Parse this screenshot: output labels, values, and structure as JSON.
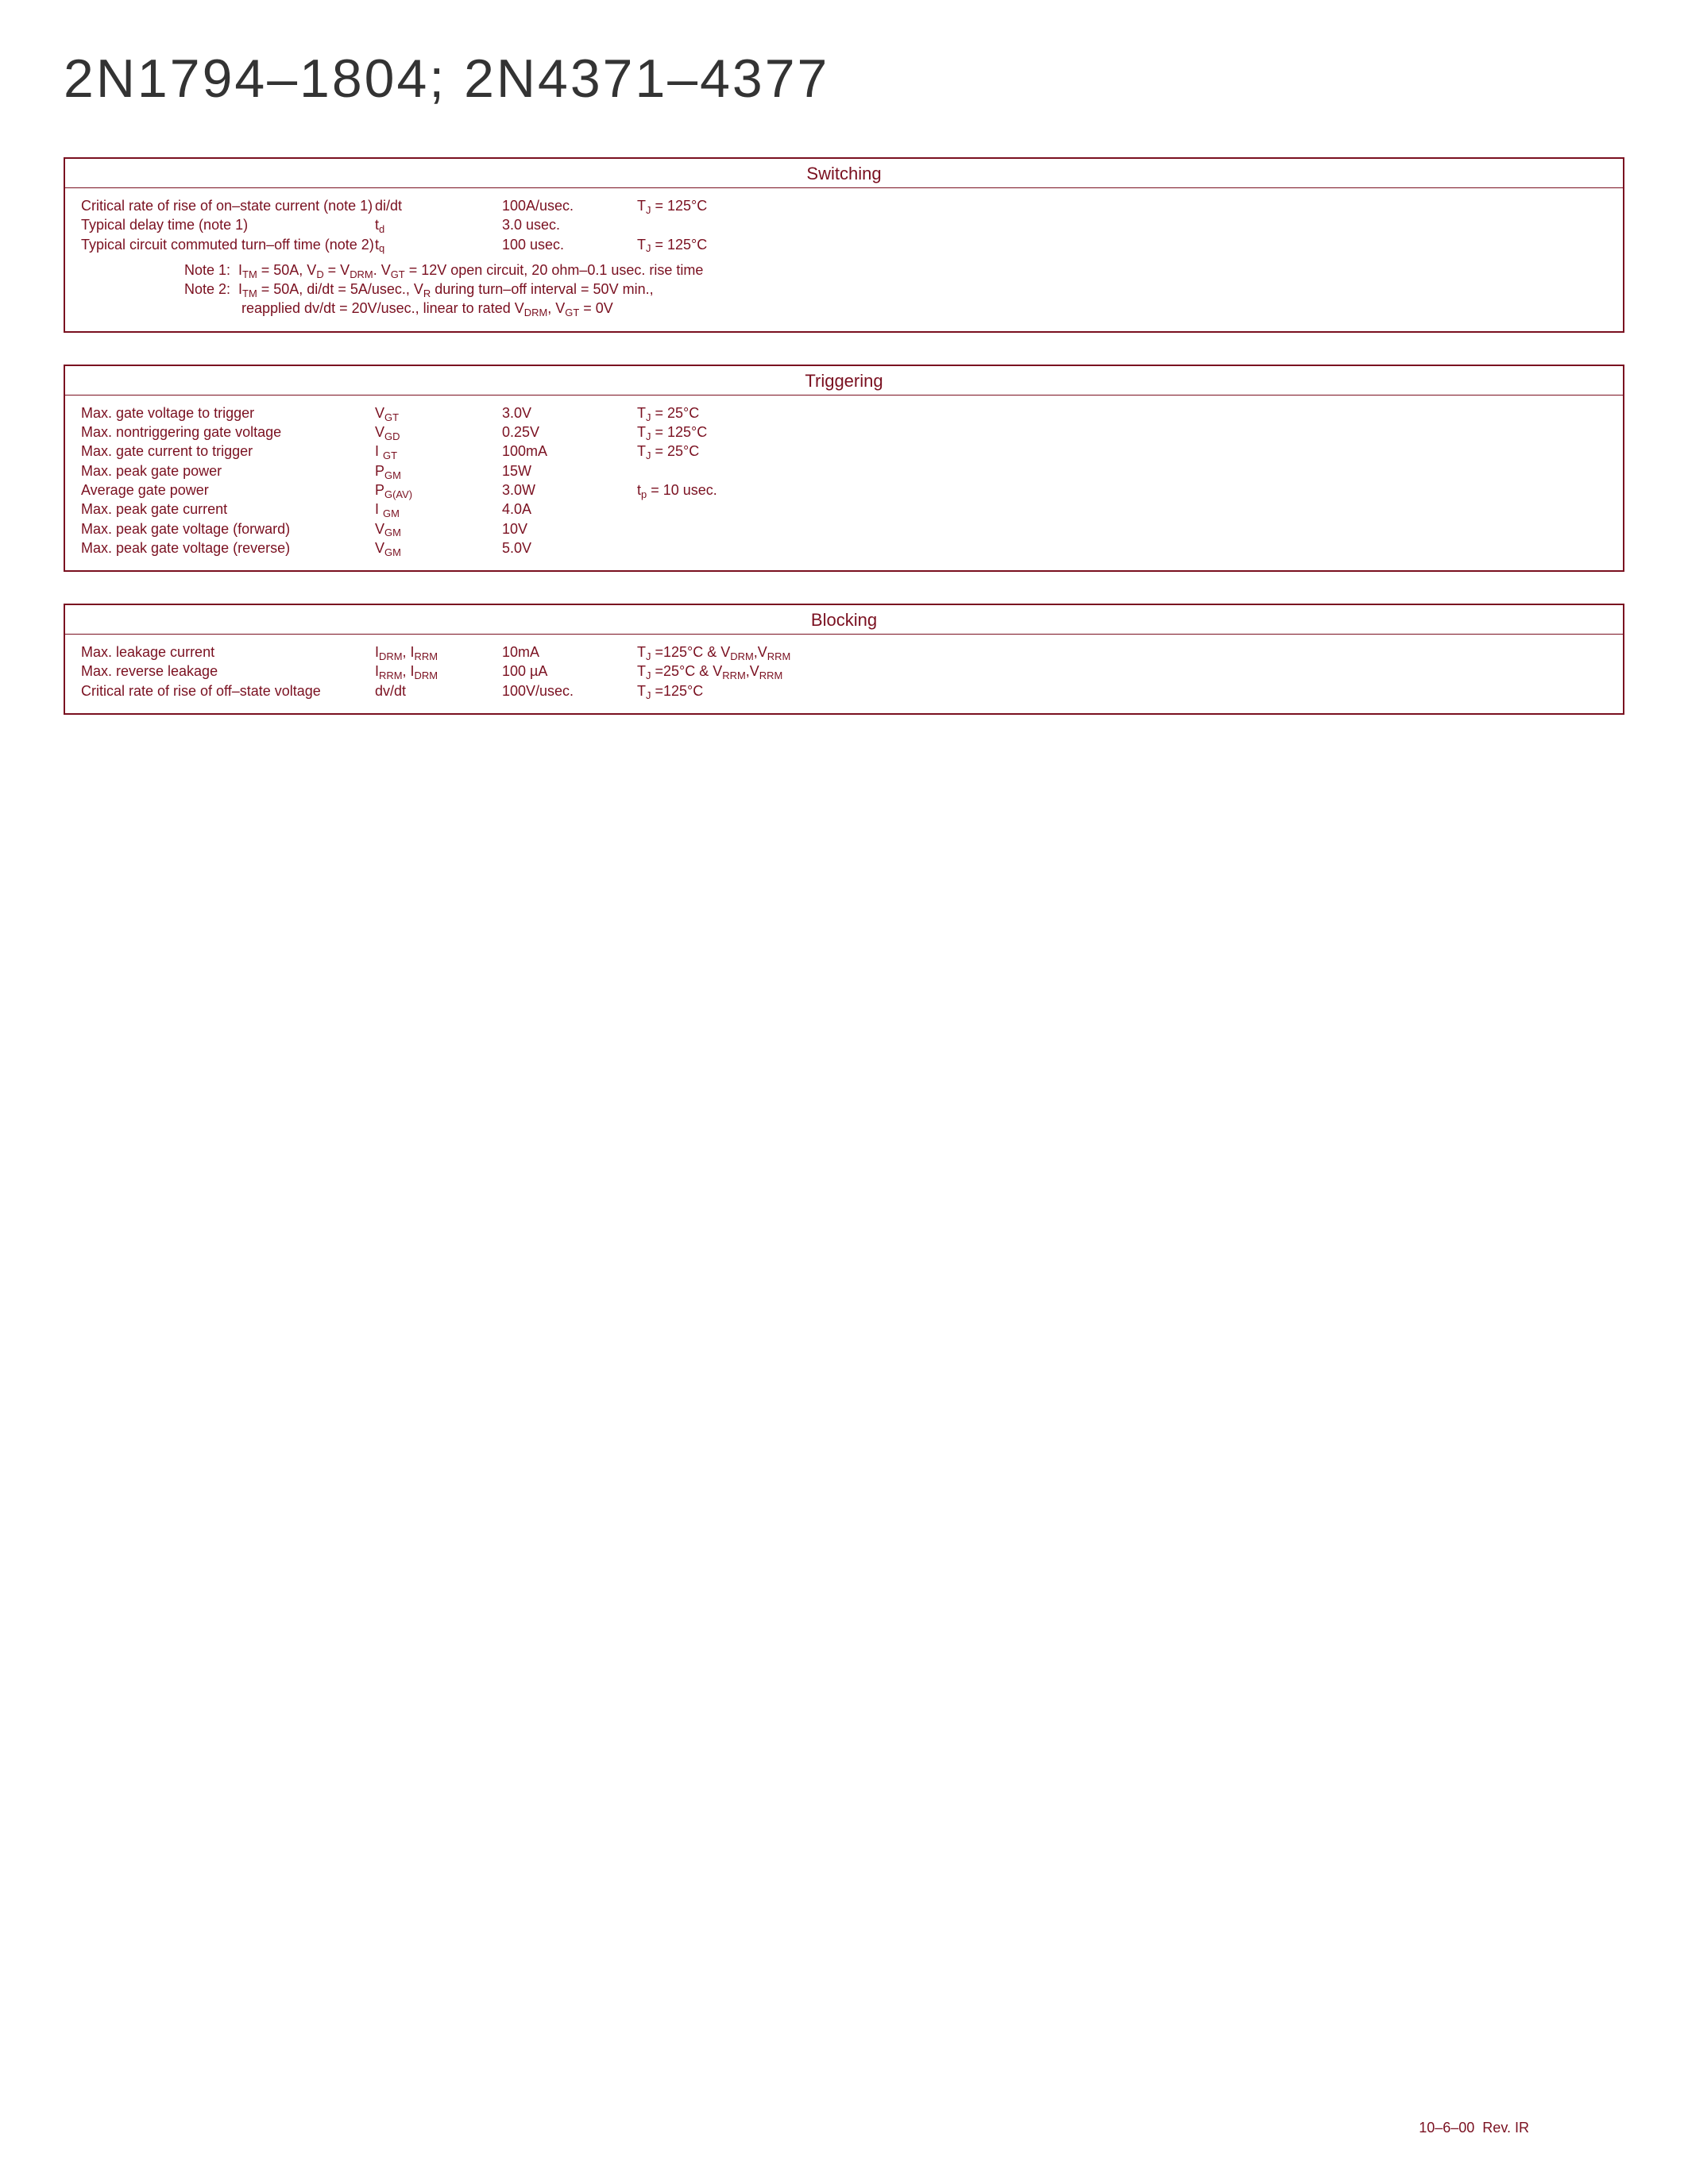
{
  "title": "2N1794–1804; 2N4371–4377",
  "footer": "10–6–00  Rev. IR",
  "accent_color": "#7a1020",
  "sections": [
    {
      "title": "Switching",
      "rows": [
        {
          "desc": "Critical rate of rise of on–state current (note 1)",
          "sym": "di/dt",
          "val": "100A/usec.",
          "cond_html": "T<sub>J</sub> = 125°C"
        },
        {
          "desc": "Typical delay time (note 1)",
          "sym_html": "t<sub>d</sub>",
          "val": "3.0 usec.",
          "cond": ""
        },
        {
          "desc": "Typical circuit commuted turn–off time (note 2)",
          "sym_html": "t<sub>q</sub>",
          "val": "100 usec.",
          "cond_html": "T<sub>J</sub> = 125°C"
        }
      ],
      "notes_html": [
        "Note 1:  I<sub>TM</sub> = 50A, V<sub>D</sub> = V<sub>DRM</sub>. V<sub>GT</sub> = 12V open circuit, 20 ohm–0.1 usec. rise time",
        "Note 2:  I<sub>TM</sub> = 50A, di/dt = 5A/usec., V<sub>R</sub> during turn–off interval = 50V min.,",
        "<span class=\"indent\">reapplied dv/dt = 20V/usec., linear to rated V<sub>DRM</sub>, V<sub>GT</sub> = 0V</span>"
      ]
    },
    {
      "title": "Triggering",
      "rows": [
        {
          "desc": "Max. gate voltage to trigger",
          "sym_html": "V<sub>GT</sub>",
          "val": "3.0V",
          "cond_html": "T<sub>J</sub> = 25°C"
        },
        {
          "desc": "Max. nontriggering gate voltage",
          "sym_html": "V<sub>GD</sub>",
          "val": "0.25V",
          "cond_html": "T<sub>J</sub> = 125°C"
        },
        {
          "desc": "Max. gate current to trigger",
          "sym_html": "I <sub>GT</sub>",
          "val": "100mA",
          "cond_html": "T<sub>J</sub> = 25°C"
        },
        {
          "desc": "Max. peak gate power",
          "sym_html": "P<sub>GM</sub>",
          "val": "15W",
          "cond": ""
        },
        {
          "desc": "Average gate power",
          "sym_html": "P<sub>G(AV)</sub>",
          "val": "3.0W",
          "cond_html": "t<sub>p</sub> = 10 usec."
        },
        {
          "desc": "Max. peak gate current",
          "sym_html": "I <sub>GM</sub>",
          "val": "4.0A",
          "cond": ""
        },
        {
          "desc": "Max. peak gate voltage (forward)",
          "sym_html": "V<sub>GM</sub>",
          "val": "10V",
          "cond": ""
        },
        {
          "desc": "Max. peak gate voltage (reverse)",
          "sym_html": "V<sub>GM</sub>",
          "val": "5.0V",
          "cond": ""
        }
      ]
    },
    {
      "title": "Blocking",
      "rows": [
        {
          "desc": "Max. leakage current",
          "sym_html": "I<sub>DRM</sub>, I<sub>RRM</sub>",
          "val": "10mA",
          "cond_html": "T<sub>J</sub> =125°C & V<sub>DRM</sub>,V<sub>RRM</sub>"
        },
        {
          "desc": "Max. reverse leakage",
          "sym_html": "I<sub>RRM</sub>, I<sub>DRM</sub>",
          "val": "100 µA",
          "cond_html": "T<sub>J</sub> =25°C & V<sub>RRM</sub>,V<sub>RRM</sub>"
        },
        {
          "desc": "Critical rate of rise of off–state voltage",
          "sym": "dv/dt",
          "val": "100V/usec.",
          "cond_html": "T<sub>J</sub> =125°C"
        }
      ]
    }
  ]
}
